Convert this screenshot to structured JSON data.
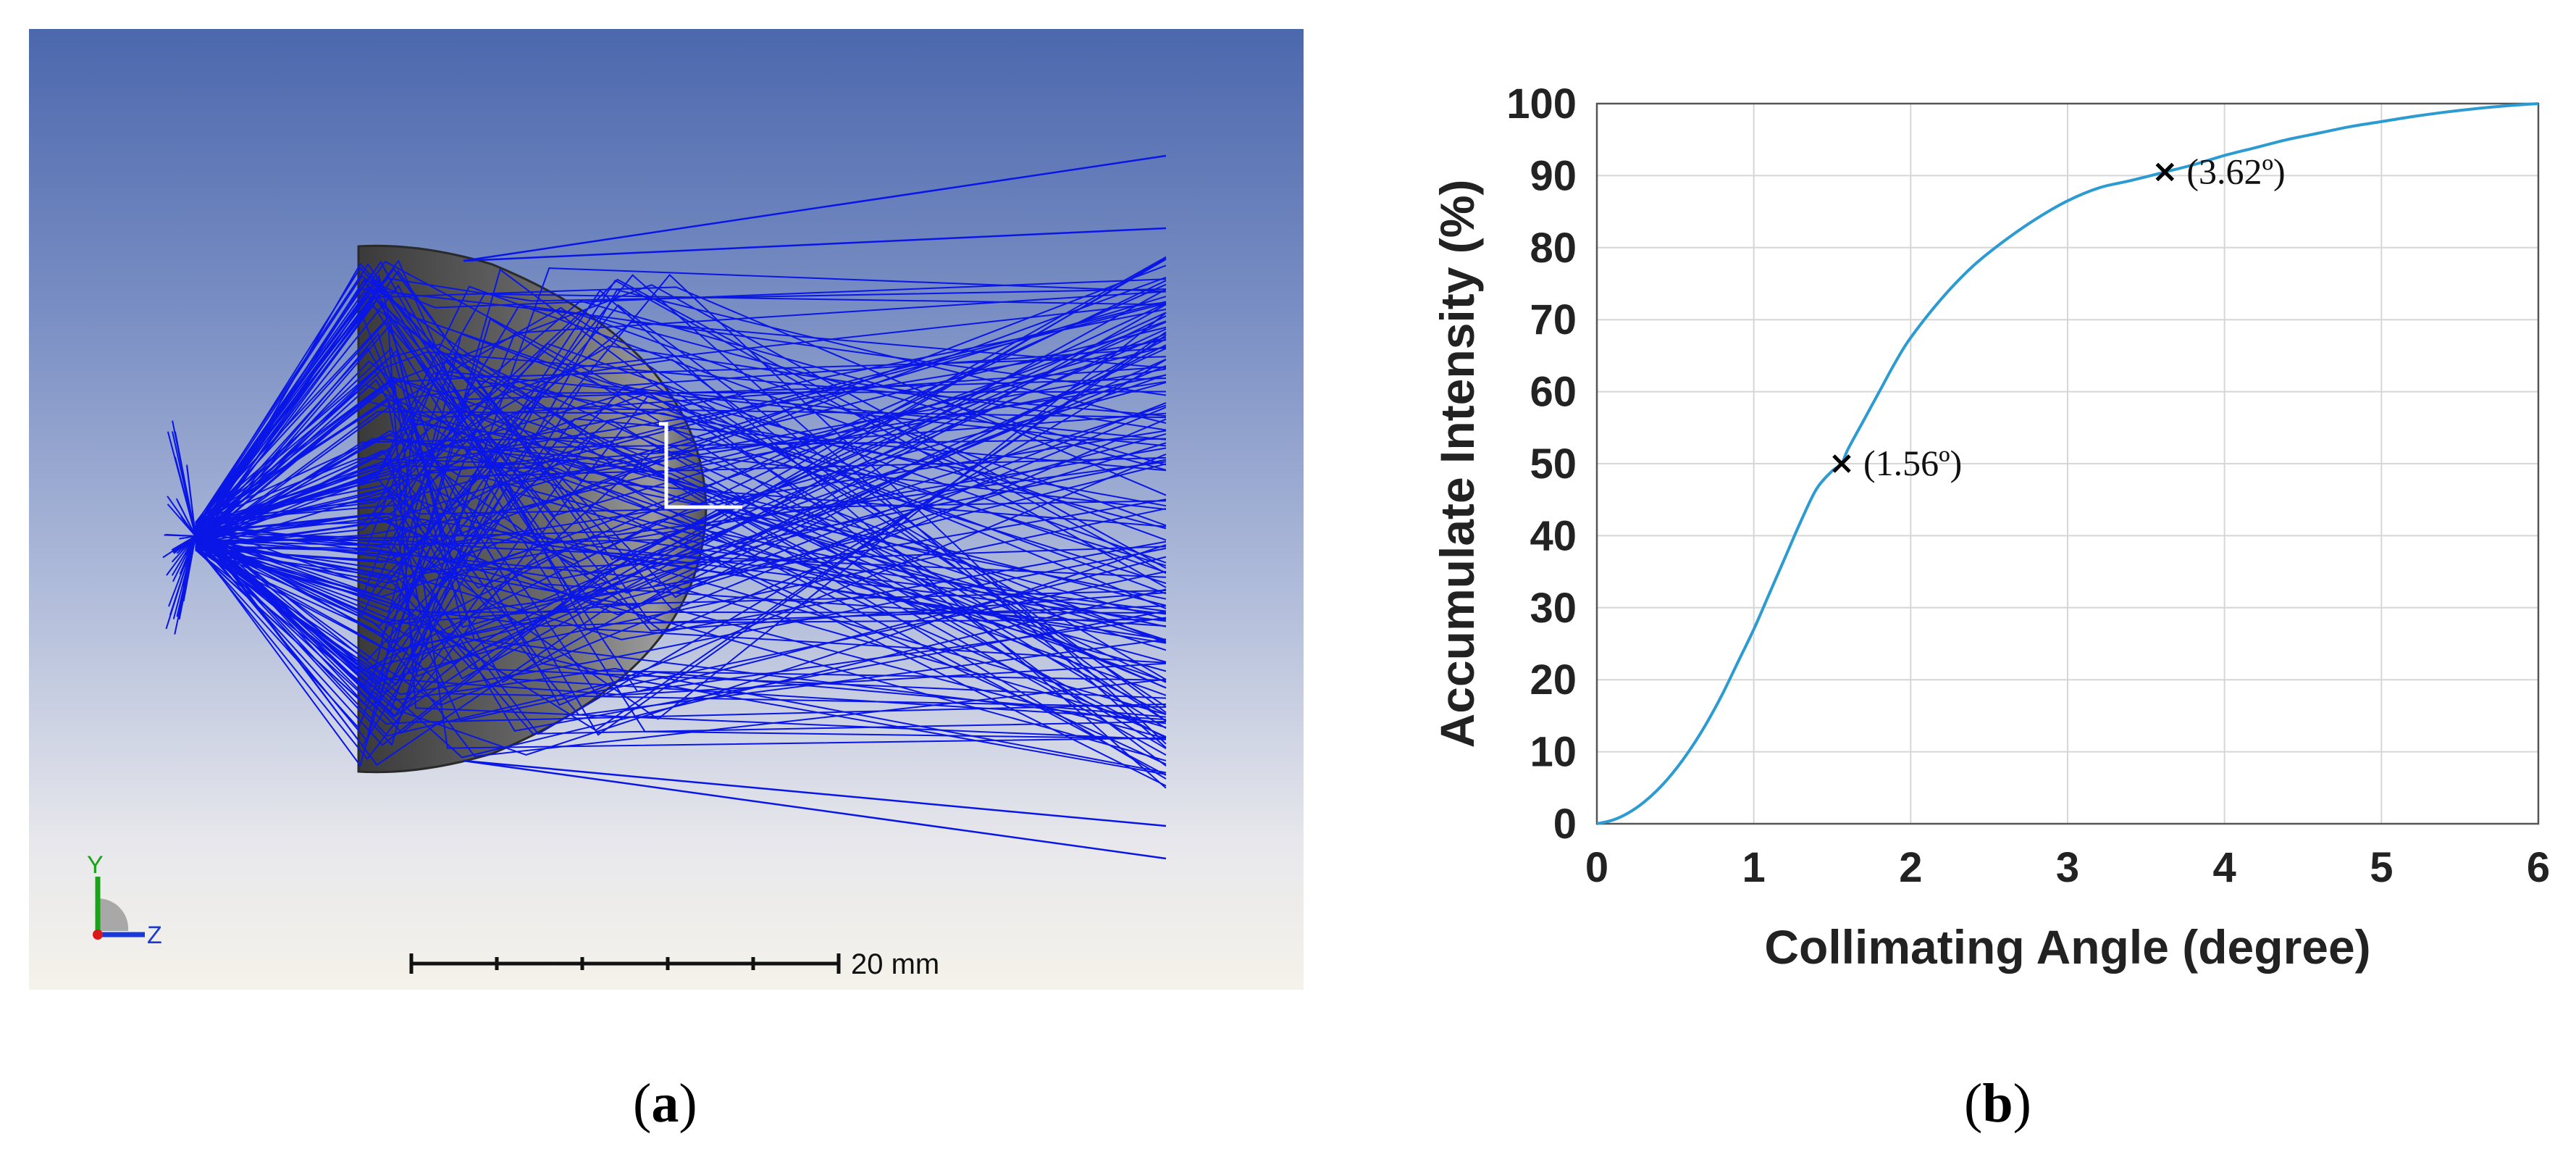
{
  "panel_a": {
    "caption": "a",
    "scale_bar_label": "20 mm",
    "axis_icon": {
      "y_label": "Y",
      "z_label": "Z"
    },
    "colors": {
      "rays": "#0a16e6",
      "lens": "#4a4a4a",
      "bg_top": "#4c68ad",
      "bg_bottom": "#f5f2ea"
    }
  },
  "panel_b": {
    "caption": "b",
    "chart_data": {
      "type": "line",
      "title": "",
      "xlabel": "Collimating Angle (degree)",
      "ylabel": "Accumulate Intensity (%)",
      "xlim": [
        0,
        6
      ],
      "ylim": [
        0,
        100
      ],
      "xticks": [
        "0",
        "1",
        "2",
        "3",
        "4",
        "5",
        "6"
      ],
      "yticks": [
        "0",
        "10",
        "20",
        "30",
        "40",
        "50",
        "60",
        "70",
        "80",
        "90",
        "100"
      ],
      "grid": true,
      "line_color": "#2b9bd1",
      "series": [
        {
          "x": [
            0,
            0.1,
            0.2,
            0.3,
            0.4,
            0.5,
            0.6,
            0.7,
            0.8,
            0.9,
            1.0,
            1.1,
            1.2,
            1.3,
            1.4,
            1.5,
            1.56,
            1.6,
            1.7,
            1.8,
            1.9,
            2.0,
            2.2,
            2.4,
            2.6,
            2.8,
            3.0,
            3.2,
            3.4,
            3.62,
            3.8,
            4.0,
            4.2,
            4.4,
            4.6,
            4.8,
            5.0,
            5.2,
            5.4,
            5.6,
            5.8,
            6.0
          ],
          "y": [
            0,
            0.5,
            1.5,
            3,
            5,
            7.5,
            10.5,
            14,
            18,
            22.5,
            27,
            32,
            37,
            42,
            46.5,
            49,
            50,
            52,
            56,
            60,
            64,
            67.5,
            73,
            77.5,
            81,
            84,
            86.5,
            88.3,
            89.3,
            90.5,
            91.5,
            92.8,
            93.9,
            95,
            95.9,
            96.8,
            97.5,
            98.2,
            98.8,
            99.3,
            99.7,
            100
          ]
        }
      ],
      "annotations": [
        {
          "x": 1.56,
          "y": 50,
          "label": "(1.56º)"
        },
        {
          "x": 3.62,
          "y": 90.5,
          "label": "(3.62º)"
        }
      ]
    }
  }
}
